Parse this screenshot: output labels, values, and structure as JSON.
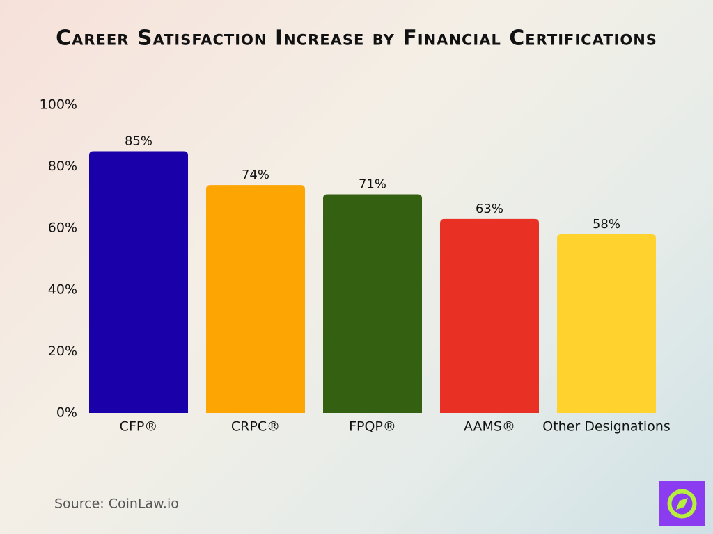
{
  "chart_data": {
    "type": "bar",
    "title": "Career Satisfaction Increase by Financial Certifications",
    "source": "Source: CoinLaw.io",
    "categories": [
      "CFP®",
      "CRPC®",
      "FPQP®",
      "AAMS®",
      "Other Designations"
    ],
    "values": [
      85,
      74,
      71,
      63,
      58
    ],
    "value_labels": [
      "85%",
      "74%",
      "71%",
      "63%",
      "58%"
    ],
    "colors": [
      "#1a00a8",
      "#fca503",
      "#336111",
      "#e83124",
      "#ffd22e"
    ],
    "ylim": [
      0,
      100
    ],
    "yticks": [
      {
        "value": 0,
        "label": "0%"
      },
      {
        "value": 20,
        "label": "20%"
      },
      {
        "value": 40,
        "label": "40%"
      },
      {
        "value": 60,
        "label": "60%"
      },
      {
        "value": 80,
        "label": "80%"
      },
      {
        "value": 100,
        "label": "100%"
      }
    ],
    "grid": false
  }
}
